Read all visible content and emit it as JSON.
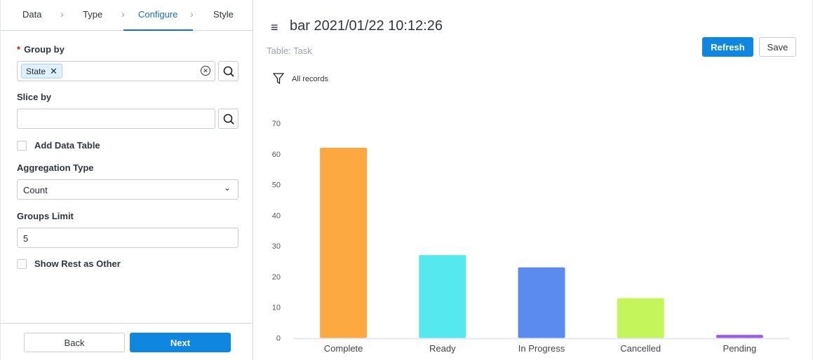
{
  "wizard": {
    "steps": [
      "Data",
      "Type",
      "Configure",
      "Style"
    ],
    "active": "Configure"
  },
  "group_by": {
    "label": "Group by",
    "chip": "State"
  },
  "slice_by": {
    "label": "Slice by",
    "value": ""
  },
  "add_data_table": {
    "label": "Add Data Table",
    "checked": false
  },
  "aggregation": {
    "label": "Aggregation Type",
    "value": "Count"
  },
  "groups_limit": {
    "label": "Groups Limit",
    "value": "5"
  },
  "show_rest": {
    "label": "Show Rest as Other",
    "checked": false
  },
  "footer": {
    "back": "Back",
    "next": "Next"
  },
  "header": {
    "title": "bar 2021/01/22 10:12:26",
    "table": "Table: Task",
    "refresh": "Refresh",
    "save": "Save",
    "filter": "All records"
  },
  "colors": {
    "accent": "#0f86e0"
  },
  "chart_data": {
    "type": "bar",
    "categories": [
      "Complete",
      "Ready",
      "In Progress",
      "Cancelled",
      "Pending"
    ],
    "values": [
      62,
      27,
      23,
      13,
      1
    ],
    "colors": [
      "#fda942",
      "#55e9ef",
      "#5b8bee",
      "#c4f55b",
      "#9b5de5"
    ],
    "ylim": [
      0,
      70
    ],
    "yticks": [
      0,
      10,
      20,
      30,
      40,
      50,
      60,
      70
    ],
    "grid": false
  }
}
